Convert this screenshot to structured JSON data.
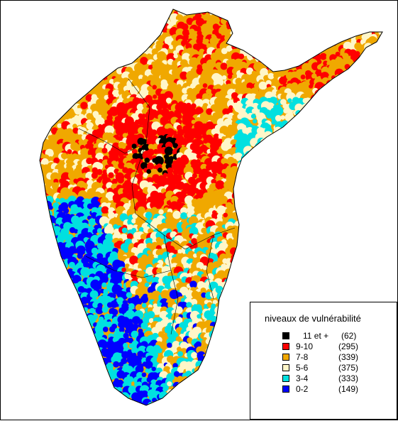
{
  "legend": {
    "title": "niveaux de vulnérabilité",
    "items": [
      {
        "label": "11 et +",
        "count": "(62)",
        "color": "#000000"
      },
      {
        "label": "9-10",
        "count": "(295)",
        "color": "#ff0000"
      },
      {
        "label": "7-8",
        "count": "(339)",
        "color": "#f0a800"
      },
      {
        "label": "5-6",
        "count": "(375)",
        "color": "#fff6c8"
      },
      {
        "label": "3-4",
        "count": "(333)",
        "color": "#00e0e0"
      },
      {
        "label": "0-2",
        "count": "(149)",
        "color": "#0000ff"
      }
    ]
  },
  "colors": {
    "outline": "#000000",
    "background": "#ffffff"
  }
}
